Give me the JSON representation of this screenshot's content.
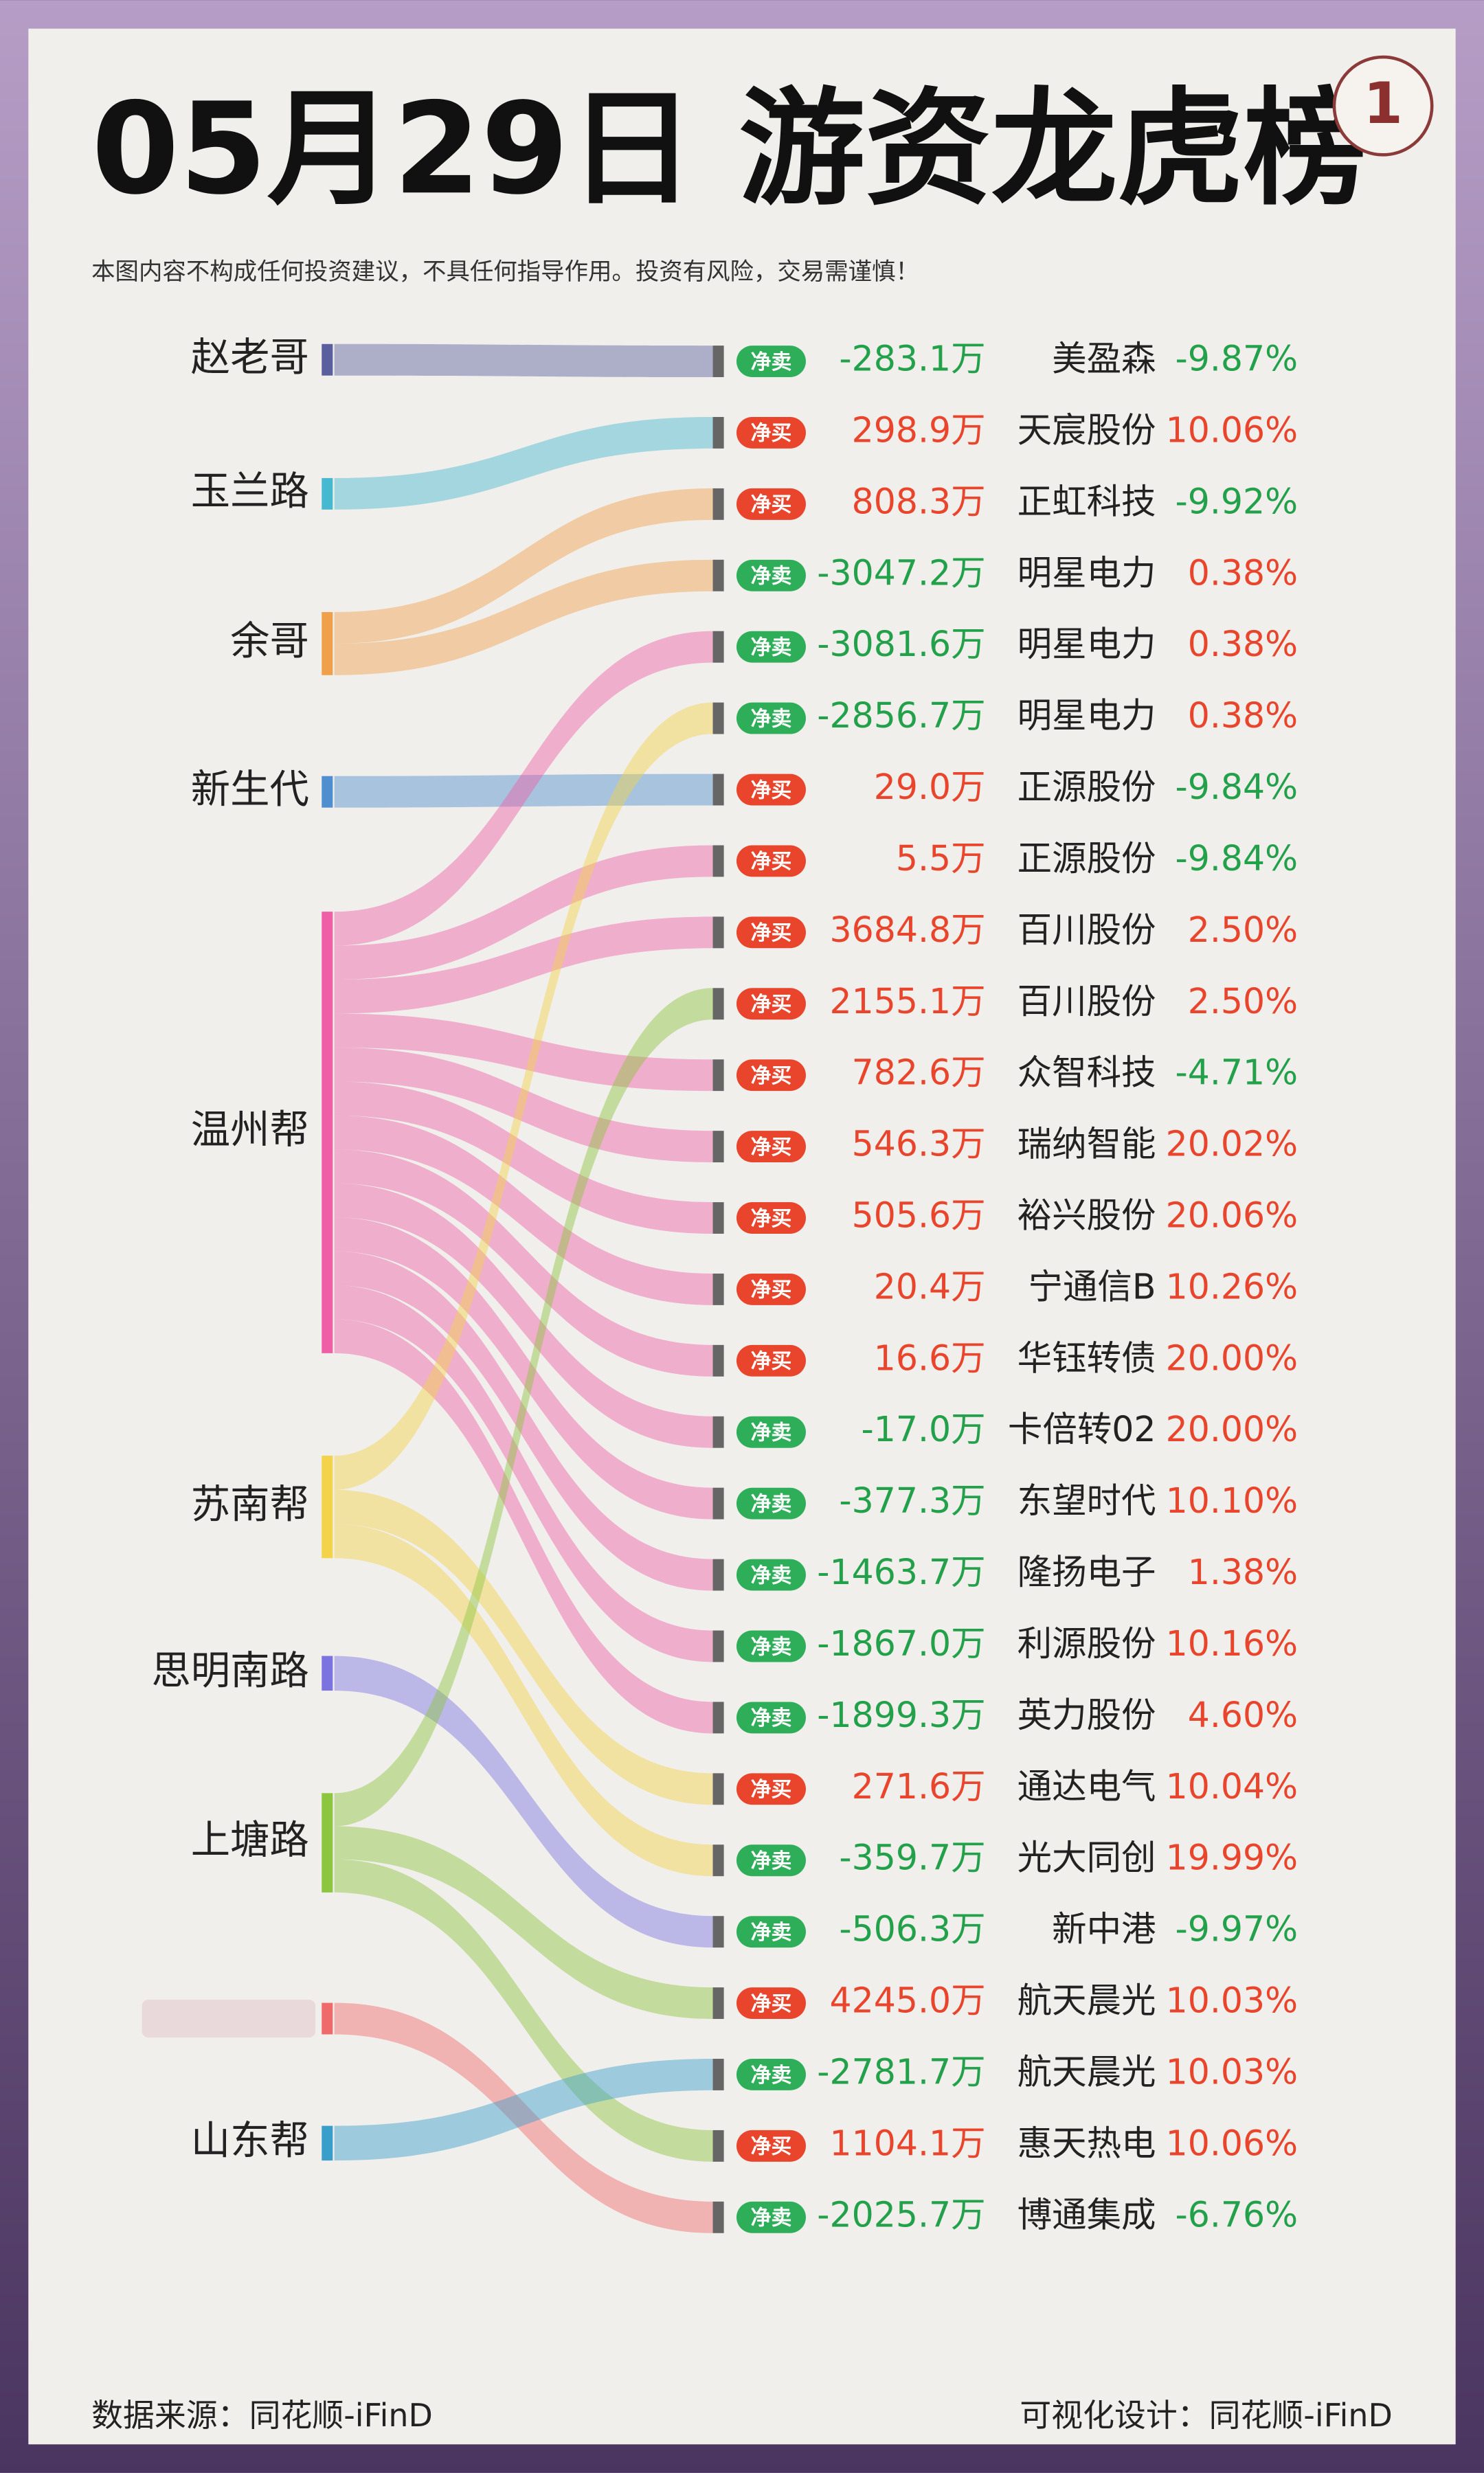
{
  "header": {
    "title": "05月29日 游资龙虎榜",
    "badge": "1",
    "disclaimer": "本图内容不构成任何投资建议，不具任何指导作用。投资有风险，交易需谨慎！"
  },
  "traders": [
    {
      "name": "赵老哥",
      "color": "#5a5f9e"
    },
    {
      "name": "玉兰路",
      "color": "#46b8d0"
    },
    {
      "name": "余哥",
      "color": "#f0a04b"
    },
    {
      "name": "新生代",
      "color": "#4f8fcf"
    },
    {
      "name": "温州帮",
      "color": "#ee5fa7"
    },
    {
      "name": "苏南帮",
      "color": "#f2d34a"
    },
    {
      "name": "思明南路",
      "color": "#7b73e0"
    },
    {
      "name": "上塘路",
      "color": "#8cc63f"
    },
    {
      "name": null,
      "color": "#ef6b6b"
    },
    {
      "name": "山东帮",
      "color": "#3a9ecb"
    }
  ],
  "rows": [
    {
      "trader": 0,
      "tag": "净卖",
      "amount": "-283.1万",
      "stock": "美盈森",
      "change": "-9.87%"
    },
    {
      "trader": 1,
      "tag": "净买",
      "amount": "298.9万",
      "stock": "天宸股份",
      "change": "10.06%"
    },
    {
      "trader": 2,
      "tag": "净买",
      "amount": "808.3万",
      "stock": "正虹科技",
      "change": "-9.92%"
    },
    {
      "trader": 2,
      "tag": "净卖",
      "amount": "-3047.2万",
      "stock": "明星电力",
      "change": "0.38%"
    },
    {
      "trader": 4,
      "tag": "净卖",
      "amount": "-3081.6万",
      "stock": "明星电力",
      "change": "0.38%"
    },
    {
      "trader": 5,
      "tag": "净卖",
      "amount": "-2856.7万",
      "stock": "明星电力",
      "change": "0.38%"
    },
    {
      "trader": 3,
      "tag": "净买",
      "amount": "29.0万",
      "stock": "正源股份",
      "change": "-9.84%"
    },
    {
      "trader": 4,
      "tag": "净买",
      "amount": "5.5万",
      "stock": "正源股份",
      "change": "-9.84%"
    },
    {
      "trader": 4,
      "tag": "净买",
      "amount": "3684.8万",
      "stock": "百川股份",
      "change": "2.50%"
    },
    {
      "trader": 7,
      "tag": "净买",
      "amount": "2155.1万",
      "stock": "百川股份",
      "change": "2.50%"
    },
    {
      "trader": 4,
      "tag": "净买",
      "amount": "782.6万",
      "stock": "众智科技",
      "change": "-4.71%"
    },
    {
      "trader": 4,
      "tag": "净买",
      "amount": "546.3万",
      "stock": "瑞纳智能",
      "change": "20.02%"
    },
    {
      "trader": 4,
      "tag": "净买",
      "amount": "505.6万",
      "stock": "裕兴股份",
      "change": "20.06%"
    },
    {
      "trader": 4,
      "tag": "净买",
      "amount": "20.4万",
      "stock": "宁通信B",
      "change": "10.26%"
    },
    {
      "trader": 4,
      "tag": "净买",
      "amount": "16.6万",
      "stock": "华钰转债",
      "change": "20.00%"
    },
    {
      "trader": 4,
      "tag": "净卖",
      "amount": "-17.0万",
      "stock": "卡倍转02",
      "change": "20.00%"
    },
    {
      "trader": 4,
      "tag": "净卖",
      "amount": "-377.3万",
      "stock": "东望时代",
      "change": "10.10%"
    },
    {
      "trader": 4,
      "tag": "净卖",
      "amount": "-1463.7万",
      "stock": "隆扬电子",
      "change": "1.38%"
    },
    {
      "trader": 4,
      "tag": "净卖",
      "amount": "-1867.0万",
      "stock": "利源股份",
      "change": "10.16%"
    },
    {
      "trader": 4,
      "tag": "净卖",
      "amount": "-1899.3万",
      "stock": "英力股份",
      "change": "4.60%"
    },
    {
      "trader": 5,
      "tag": "净买",
      "amount": "271.6万",
      "stock": "通达电气",
      "change": "10.04%"
    },
    {
      "trader": 5,
      "tag": "净卖",
      "amount": "-359.7万",
      "stock": "光大同创",
      "change": "19.99%"
    },
    {
      "trader": 6,
      "tag": "净卖",
      "amount": "-506.3万",
      "stock": "新中港",
      "change": "-9.97%"
    },
    {
      "trader": 7,
      "tag": "净买",
      "amount": "4245.0万",
      "stock": "航天晨光",
      "change": "10.03%"
    },
    {
      "trader": 9,
      "tag": "净卖",
      "amount": "-2781.7万",
      "stock": "航天晨光",
      "change": "10.03%"
    },
    {
      "trader": 7,
      "tag": "净买",
      "amount": "1104.1万",
      "stock": "惠天热电",
      "change": "10.06%"
    },
    {
      "trader": 8,
      "tag": "净卖",
      "amount": "-2025.7万",
      "stock": "博通集成",
      "change": "-6.76%"
    }
  ],
  "footer": {
    "source": "数据来源：同花顺-iFinD",
    "design": "可视化设计：同花顺-iFinD"
  }
}
